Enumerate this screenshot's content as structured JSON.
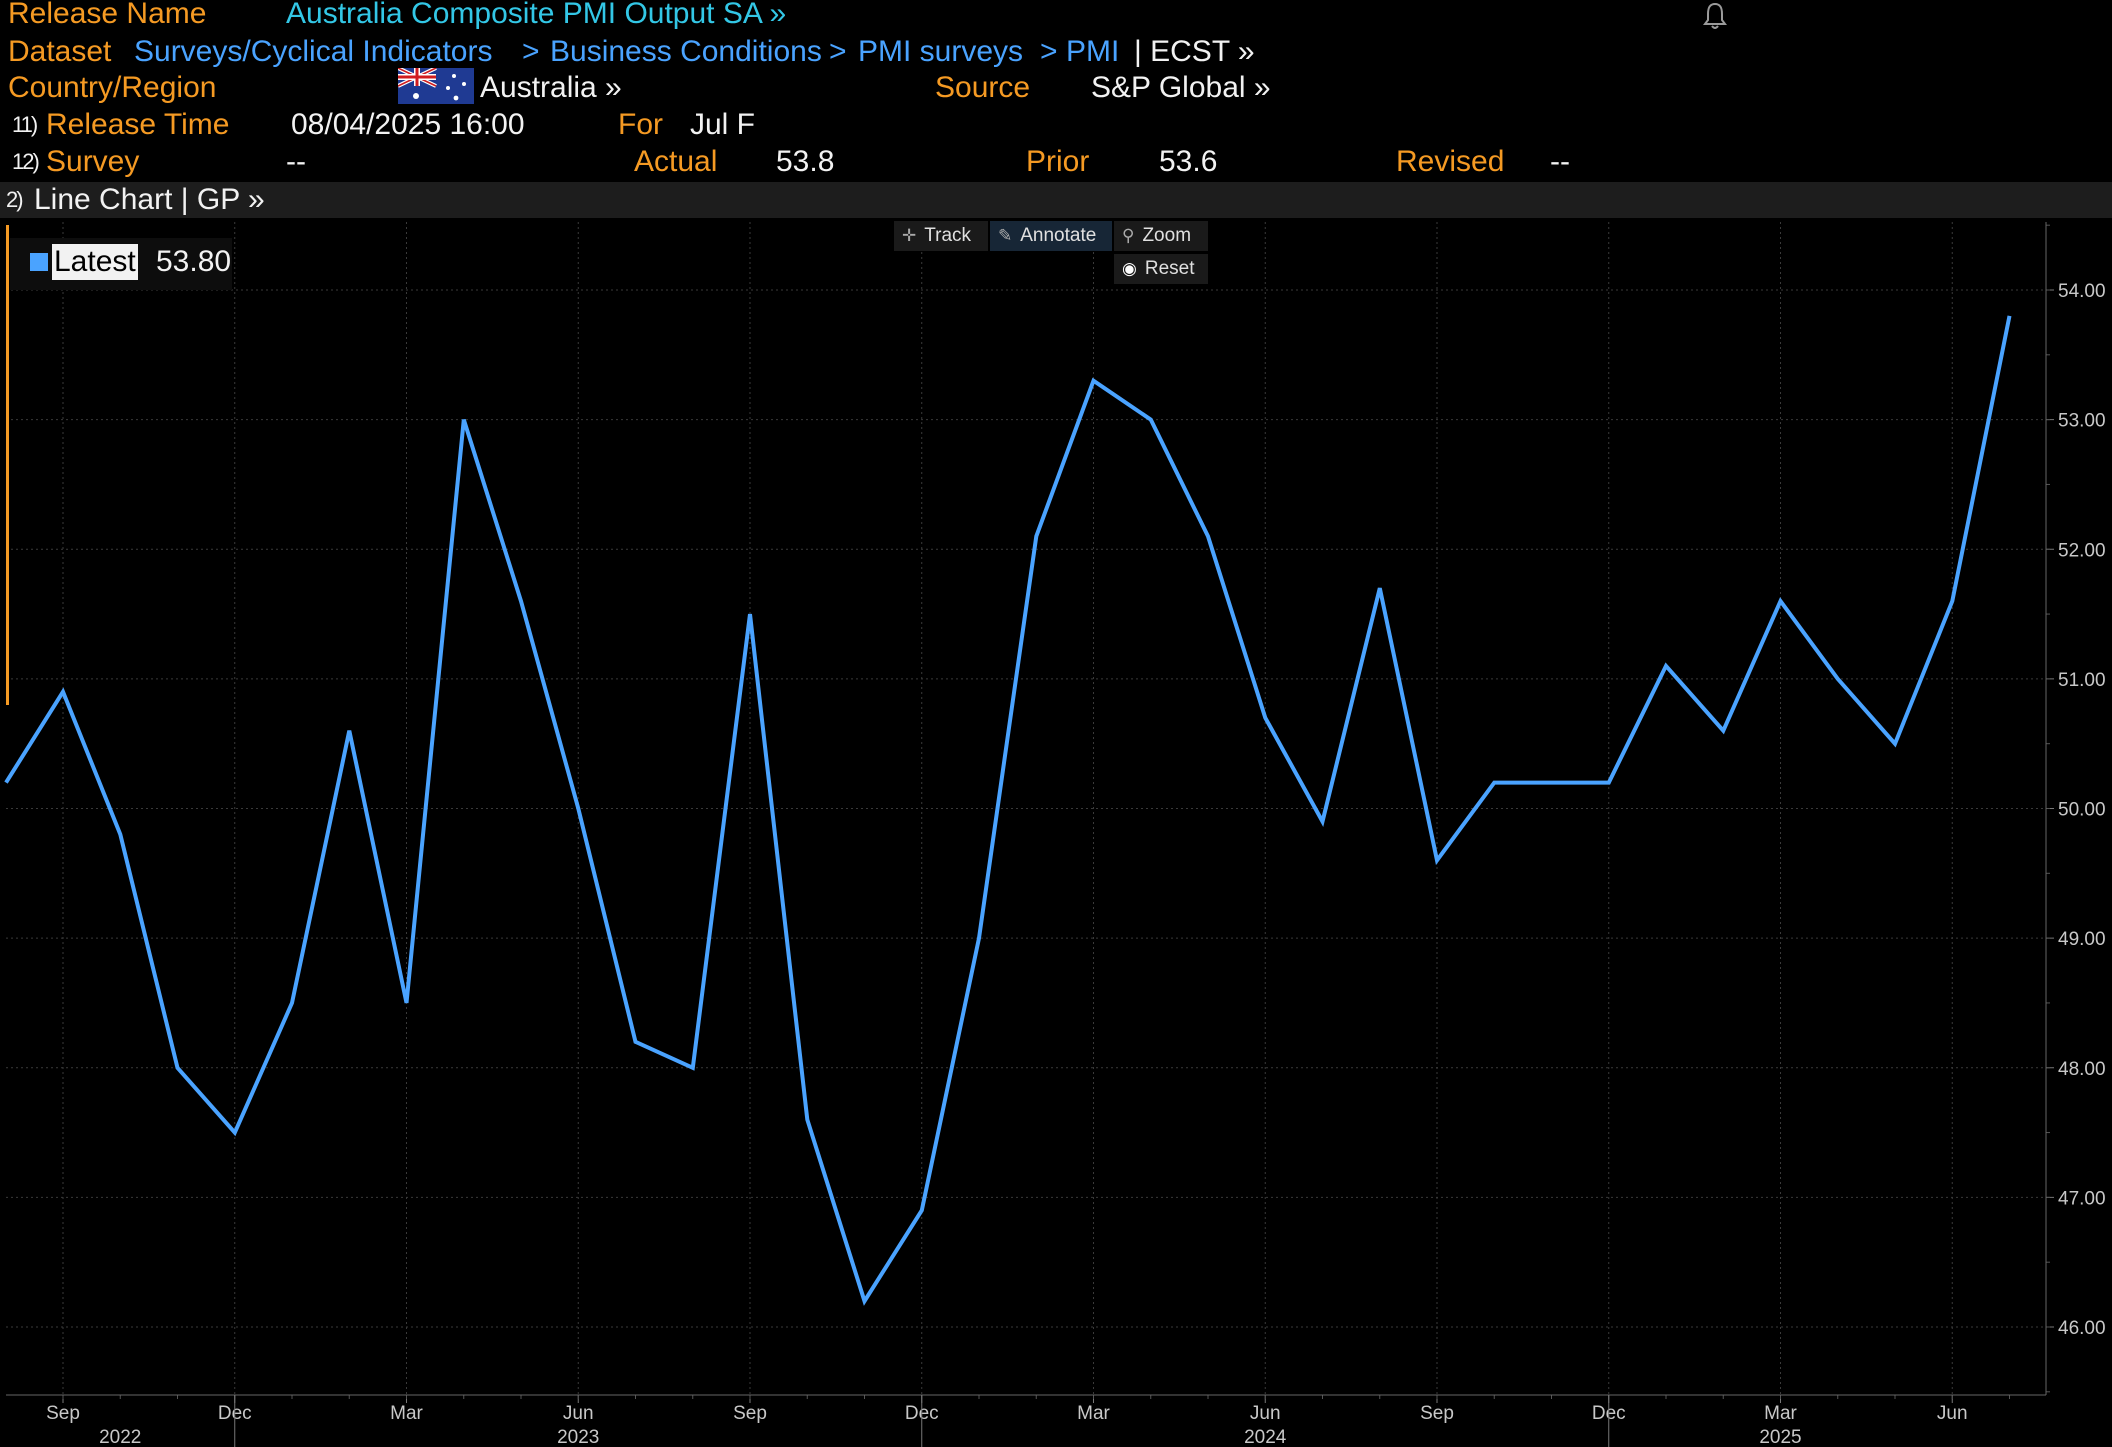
{
  "header": {
    "release_name_label": "Release Name",
    "release_name_value": "Australia Composite PMI Output SA »",
    "dataset_label": "Dataset",
    "dataset_path": [
      "Surveys/Cyclical Indicators",
      "Business Conditions",
      "PMI surveys",
      "PMI"
    ],
    "dataset_sep": ">",
    "dataset_tail": "| ECST »",
    "country_label": "Country/Region",
    "country_value": "Australia »",
    "source_label": "Source",
    "source_value": "S&P Global »",
    "release_time_num": "11)",
    "release_time_label": "Release Time",
    "release_time_value": "08/04/2025 16:00",
    "for_label": "For",
    "for_value": "Jul F",
    "survey_num": "12)",
    "survey_label": "Survey",
    "survey_value": "--",
    "actual_label": "Actual",
    "actual_value": "53.8",
    "prior_label": "Prior",
    "prior_value": "53.6",
    "revised_label": "Revised",
    "revised_value": "--"
  },
  "chart_bar": {
    "num": "2)",
    "label": "Line Chart | GP »"
  },
  "toolbar": {
    "track": "Track",
    "annotate": "Annotate",
    "zoom": "Zoom",
    "reset": "Reset"
  },
  "legend": {
    "label": "Latest",
    "value": "53.80"
  },
  "colors": {
    "series": "#4aa3ff",
    "accent": "#f59a23",
    "link": "#33c7e6"
  },
  "icons": [
    "bell-icon",
    "australia-flag-icon",
    "crosshair-icon",
    "pencil-icon",
    "magnifier-icon",
    "reset-icon"
  ],
  "chart_data": {
    "type": "line",
    "title": "",
    "xlabel": "",
    "ylabel": "",
    "ylim": [
      45.5,
      54.5
    ],
    "yticks": [
      "46.00",
      "47.00",
      "48.00",
      "49.00",
      "50.00",
      "51.00",
      "52.00",
      "53.00",
      "54.00"
    ],
    "xticks": [
      {
        "month": "Sep",
        "date": "2022-09"
      },
      {
        "month": "Dec",
        "date": "2022-12"
      },
      {
        "month": "Mar",
        "date": "2023-03"
      },
      {
        "month": "Jun",
        "date": "2023-06"
      },
      {
        "month": "Sep",
        "date": "2023-09"
      },
      {
        "month": "Dec",
        "date": "2023-12"
      },
      {
        "month": "Mar",
        "date": "2024-03"
      },
      {
        "month": "Jun",
        "date": "2024-06"
      },
      {
        "month": "Sep",
        "date": "2024-09"
      },
      {
        "month": "Dec",
        "date": "2024-12"
      },
      {
        "month": "Mar",
        "date": "2025-03"
      },
      {
        "month": "Jun",
        "date": "2025-06"
      }
    ],
    "year_labels": [
      {
        "label": "2022",
        "date": "2022-10"
      },
      {
        "label": "2023",
        "date": "2023-06"
      },
      {
        "label": "2024",
        "date": "2024-06"
      },
      {
        "label": "2025",
        "date": "2025-03"
      }
    ],
    "year_dividers": [
      "2022-12",
      "2023-12",
      "2024-12"
    ],
    "grid": true,
    "series": [
      {
        "name": "Latest",
        "x": [
          "2022-08",
          "2022-09",
          "2022-10",
          "2022-11",
          "2022-12",
          "2023-01",
          "2023-02",
          "2023-03",
          "2023-04",
          "2023-05",
          "2023-06",
          "2023-07",
          "2023-08",
          "2023-09",
          "2023-10",
          "2023-11",
          "2023-12",
          "2024-01",
          "2024-02",
          "2024-03",
          "2024-04",
          "2024-05",
          "2024-06",
          "2024-07",
          "2024-08",
          "2024-09",
          "2024-10",
          "2024-11",
          "2024-12",
          "2025-01",
          "2025-02",
          "2025-03",
          "2025-04",
          "2025-05",
          "2025-06",
          "2025-07"
        ],
        "values": [
          50.2,
          50.9,
          49.8,
          48.0,
          47.5,
          48.5,
          50.6,
          48.5,
          53.0,
          51.6,
          50.0,
          48.2,
          48.0,
          51.5,
          47.6,
          46.2,
          46.9,
          49.0,
          52.1,
          53.3,
          53.0,
          52.1,
          50.7,
          49.9,
          51.7,
          49.6,
          50.2,
          50.2,
          50.2,
          51.1,
          50.6,
          51.6,
          51.0,
          50.5,
          51.6,
          53.8
        ]
      }
    ]
  }
}
